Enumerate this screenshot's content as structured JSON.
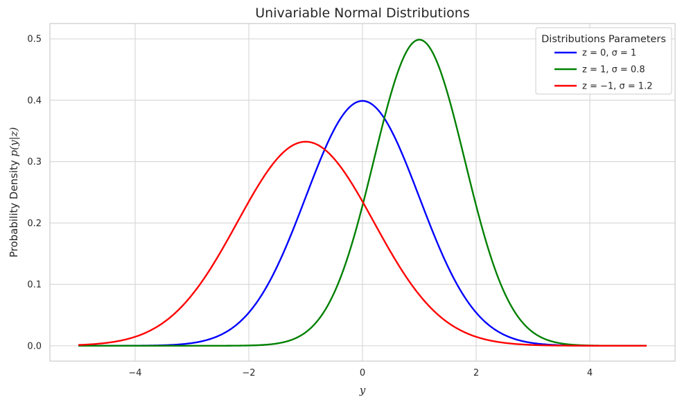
{
  "chart_data": {
    "type": "line",
    "title": "Univariable Normal Distributions",
    "xlabel": "y",
    "ylabel_prefix": "Probability Density ",
    "ylabel_math": "p(y|z)",
    "xlim": [
      -5.5,
      5.5
    ],
    "ylim": [
      -0.025,
      0.525
    ],
    "xticks": [
      -4,
      -2,
      0,
      2,
      4
    ],
    "xtick_labels": [
      "−4",
      "−2",
      "0",
      "2",
      "4"
    ],
    "yticks": [
      0.0,
      0.1,
      0.2,
      0.3,
      0.4,
      0.5
    ],
    "ytick_labels": [
      "0.0",
      "0.1",
      "0.2",
      "0.3",
      "0.4",
      "0.5"
    ],
    "grid": true,
    "x_range": [
      -5,
      5
    ],
    "legend": {
      "title": "Distributions Parameters",
      "position": "top-right"
    },
    "series": [
      {
        "name": "z = 0, σ = 1",
        "mean": 0,
        "sigma": 1,
        "color": "#0000ff",
        "peak": 0.399
      },
      {
        "name": "z = 1, σ = 0.8",
        "mean": 1,
        "sigma": 0.8,
        "color": "#008000",
        "peak": 0.499
      },
      {
        "name": "z = −1, σ = 1.2",
        "mean": -1,
        "sigma": 1.2,
        "color": "#ff0000",
        "peak": 0.332
      }
    ]
  }
}
